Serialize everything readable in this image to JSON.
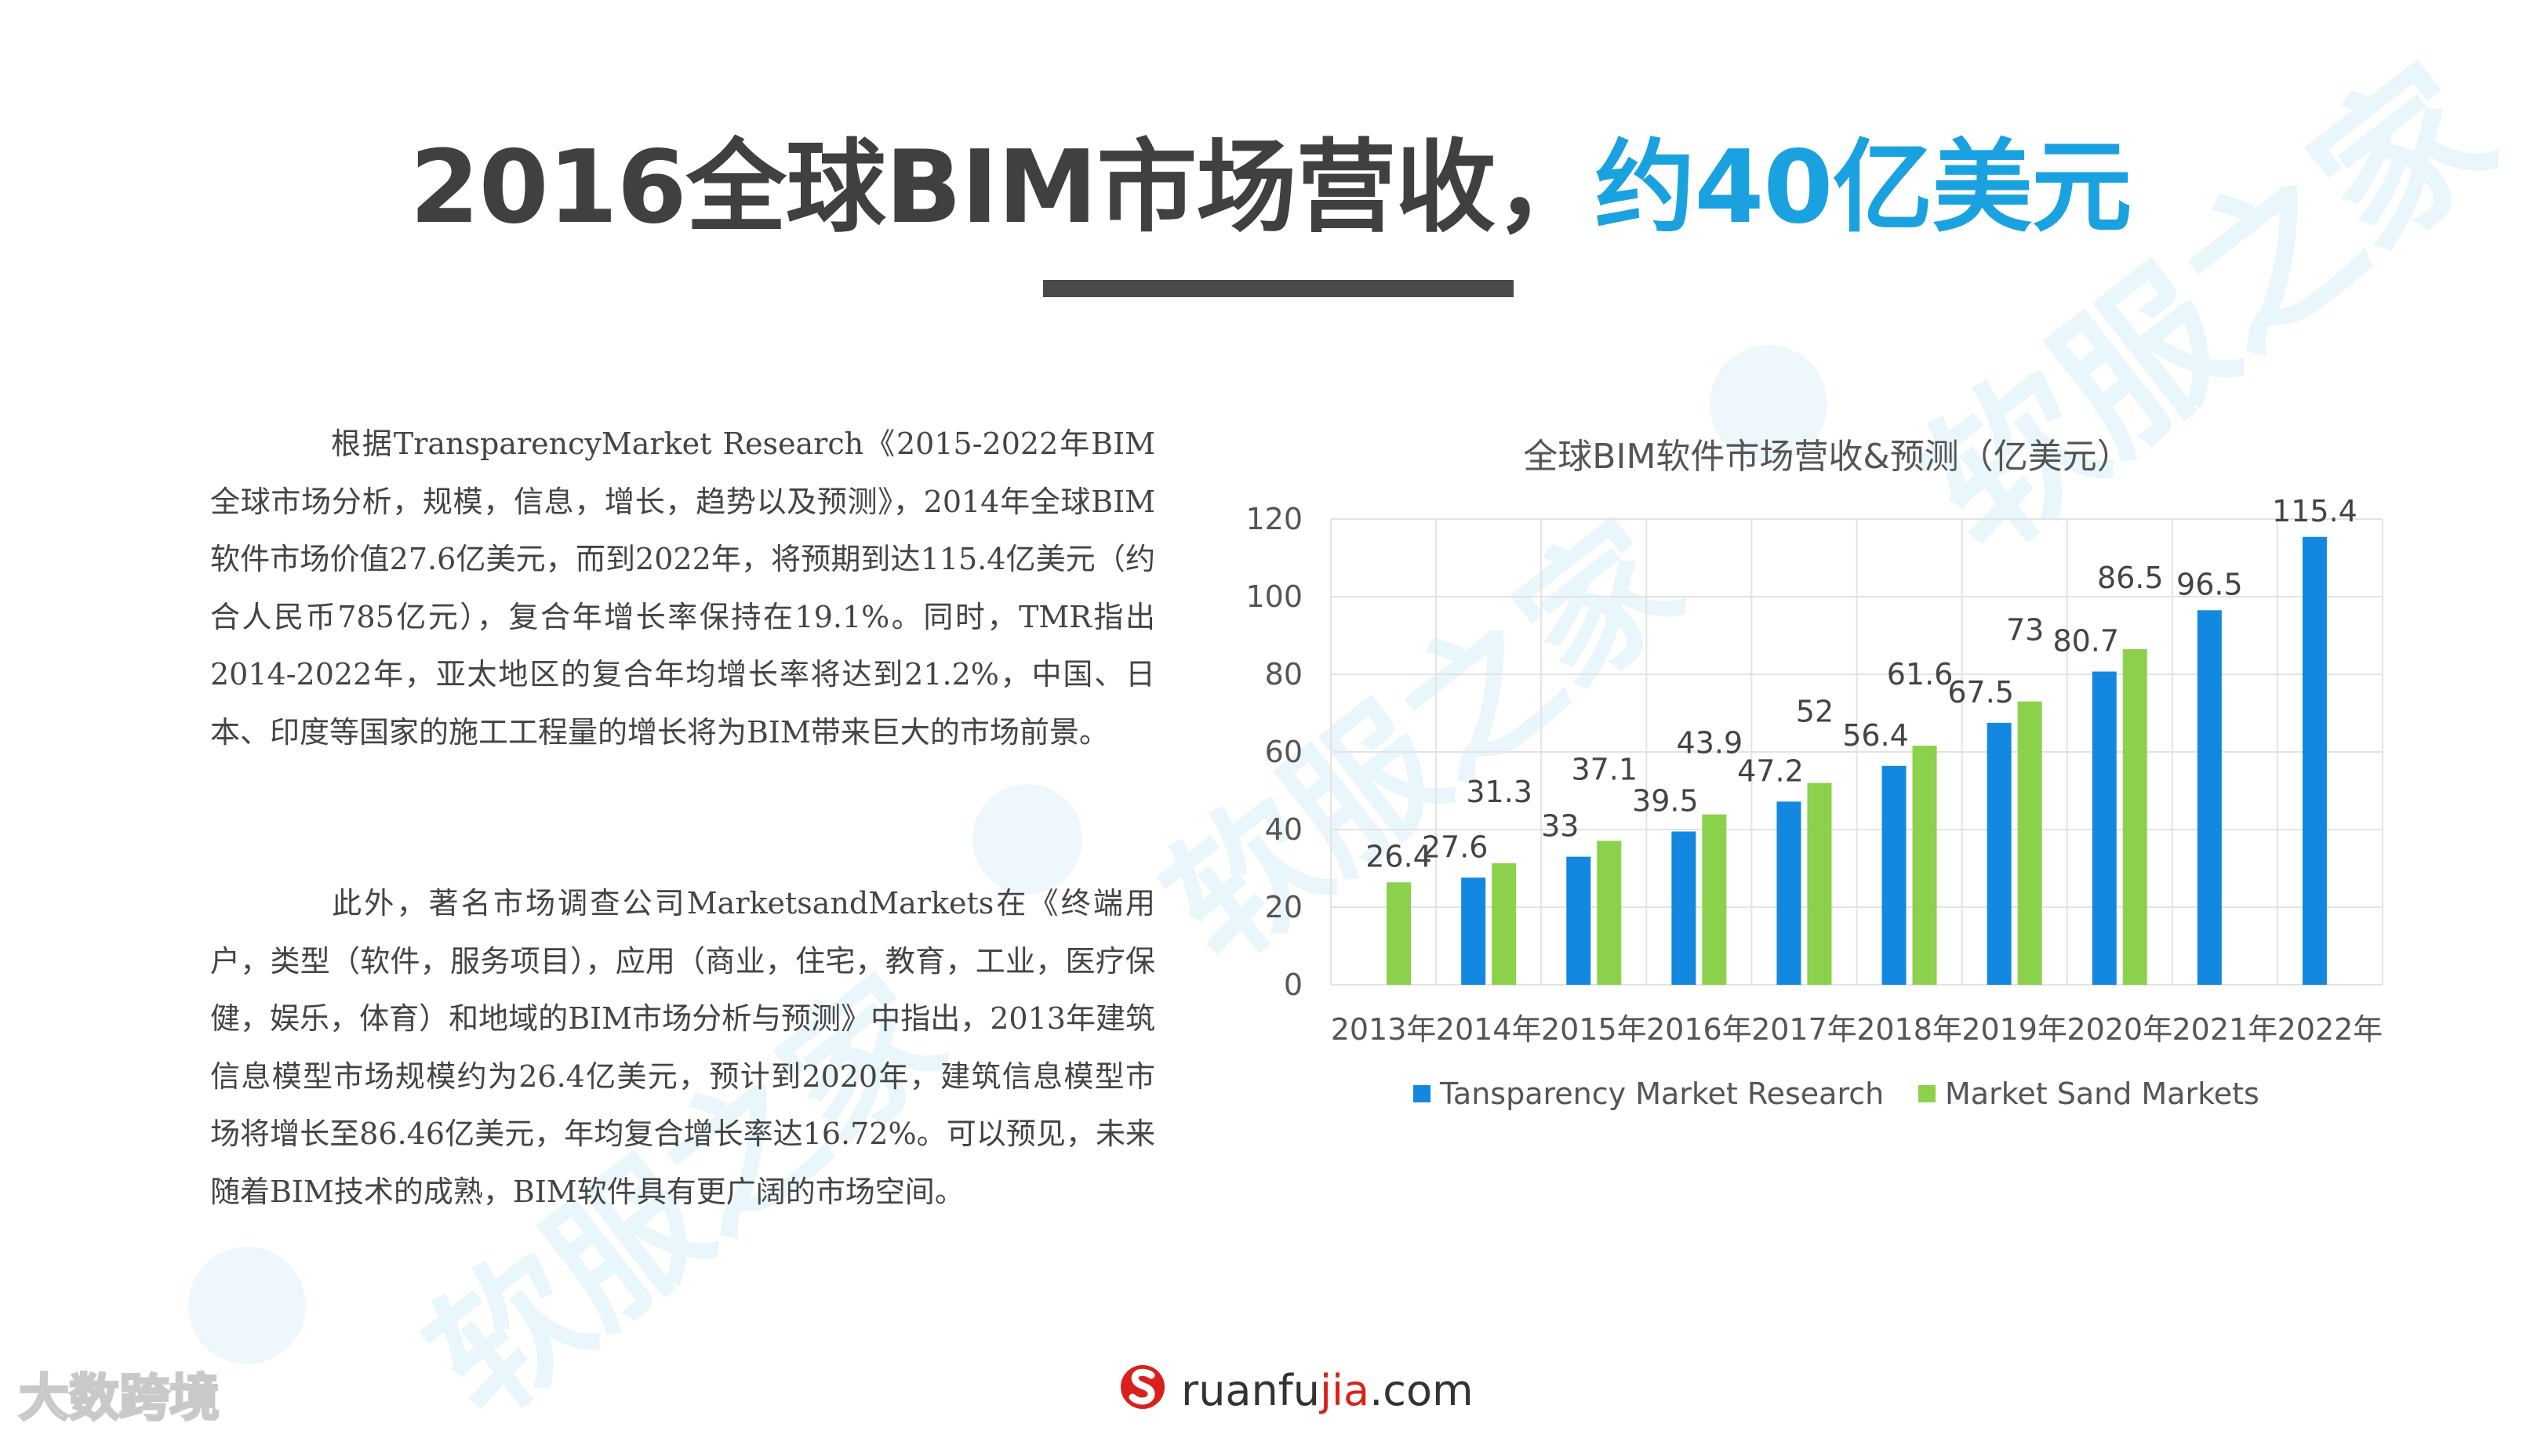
{
  "slide": {
    "title_main": "2016全球BIM市场营收，",
    "title_highlight": "约40亿美元"
  },
  "text": {
    "p1": "根据TransparencyMarket Research《2015-2022年BIM全球市场分析，规模，信息，增长，趋势以及预测》，2014年全球BIM软件市场价值27.6亿美元，而到2022年，将预期到达115.4亿美元（约合人民币785亿元），复合年增长率保持在19.1%。同时，TMR指出2014-2022年，亚太地区的复合年均增长率将达到21.2%，中国、日本、印度等国家的施工工程量的增长将为BIM带来巨大的市场前景。",
    "p2": "此外，著名市场调查公司MarketsandMarkets在《终端用户，类型（软件，服务项目），应用（商业，住宅，教育，工业，医疗保健，娱乐，体育）和地域的BIM市场分析与预测》中指出，2013年建筑信息模型市场规模约为26.4亿美元，预计到2020年，建筑信息模型市场将增长至86.46亿美元，年均复合增长率达16.72%。可以预见，未来随着BIM技术的成熟，BIM软件具有更广阔的市场空间。"
  },
  "chart_data": {
    "type": "bar",
    "title": "全球BIM软件市场营收&预测（亿美元）",
    "categories": [
      "2013年",
      "2014年",
      "2015年",
      "2016年",
      "2017年",
      "2018年",
      "2019年",
      "2020年",
      "2021年",
      "2022年"
    ],
    "series": [
      {
        "name": "Tansparency Market Research",
        "color": "#1388e0",
        "values": [
          null,
          27.6,
          33,
          39.5,
          47.2,
          56.4,
          67.5,
          80.7,
          96.5,
          115.4
        ]
      },
      {
        "name": "Market Sand Markets",
        "color": "#8cd14c",
        "values": [
          26.4,
          31.3,
          37.1,
          43.9,
          52,
          61.6,
          73,
          86.5,
          null,
          null
        ]
      }
    ],
    "ylim": [
      0,
      120
    ],
    "yticks": [
      0,
      20,
      40,
      60,
      80,
      100,
      120
    ],
    "grid": true,
    "legend": "bottom"
  },
  "branding": {
    "logo_text_a": "ruanfu",
    "logo_text_b": "jia",
    "logo_text_c": ".com",
    "corner": "大数跨境",
    "watermark": "软服之家"
  },
  "colors": {
    "accent": "#1aa2e0",
    "title": "#404040"
  }
}
